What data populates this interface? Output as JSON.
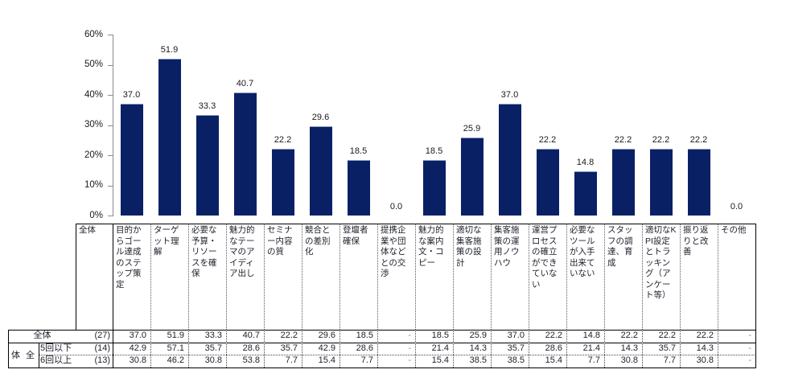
{
  "chart_data": {
    "type": "bar",
    "title": "",
    "xlabel": "",
    "ylabel": "",
    "ylim": [
      0,
      60
    ],
    "yticks": [
      "60%",
      "50%",
      "40%",
      "30%",
      "20%",
      "10%",
      "0%"
    ],
    "grid": false,
    "legend": "none",
    "bar_color": "#0a2065",
    "bar_top_edge_color": "#8d9fc6",
    "axis_color": "#8c8c8c",
    "categories": [
      "目的からゴール達成のステップ策定",
      "ターゲット理解",
      "必要な予算・リソースを確保",
      "魅力的なテーマのアイディア出し",
      "セミナー内容の質",
      "競合との差別化",
      "登壇者確保",
      "提携企業や団体などとの交渉",
      "魅力的な案内文・コピー",
      "適切な集客施策の設計",
      "集客施策の運用ノウハウ",
      "運営プロセスの確立ができていない",
      "必要なツールが入手出来ていない",
      "スタッフの調達、育成",
      "適切なKPI設定とトラッキング（アンケート等）",
      "振り返りと改善",
      "その他"
    ],
    "bar_series": {
      "name": "全体",
      "values": [
        37.0,
        51.9,
        33.3,
        40.7,
        22.2,
        29.6,
        18.5,
        0.0,
        18.5,
        25.9,
        37.0,
        22.2,
        14.8,
        22.2,
        22.2,
        22.2,
        0.0
      ]
    },
    "table": {
      "corner_label": "全体",
      "group_label": "体 全",
      "missing_placeholder": "-",
      "rows": [
        {
          "label": "全体",
          "count": "(27)",
          "values": [
            37.0,
            51.9,
            33.3,
            40.7,
            22.2,
            29.6,
            18.5,
            null,
            18.5,
            25.9,
            37.0,
            22.2,
            14.8,
            22.2,
            22.2,
            22.2,
            null
          ]
        },
        {
          "label": "5回以下",
          "count": "(14)",
          "values": [
            42.9,
            57.1,
            35.7,
            28.6,
            35.7,
            42.9,
            28.6,
            null,
            21.4,
            14.3,
            35.7,
            28.6,
            21.4,
            14.3,
            35.7,
            14.3,
            null
          ]
        },
        {
          "label": "6回以上",
          "count": "(13)",
          "values": [
            30.8,
            46.2,
            30.8,
            53.8,
            7.7,
            15.4,
            7.7,
            null,
            15.4,
            38.5,
            38.5,
            15.4,
            7.7,
            30.8,
            7.7,
            30.8,
            null
          ]
        }
      ]
    }
  }
}
